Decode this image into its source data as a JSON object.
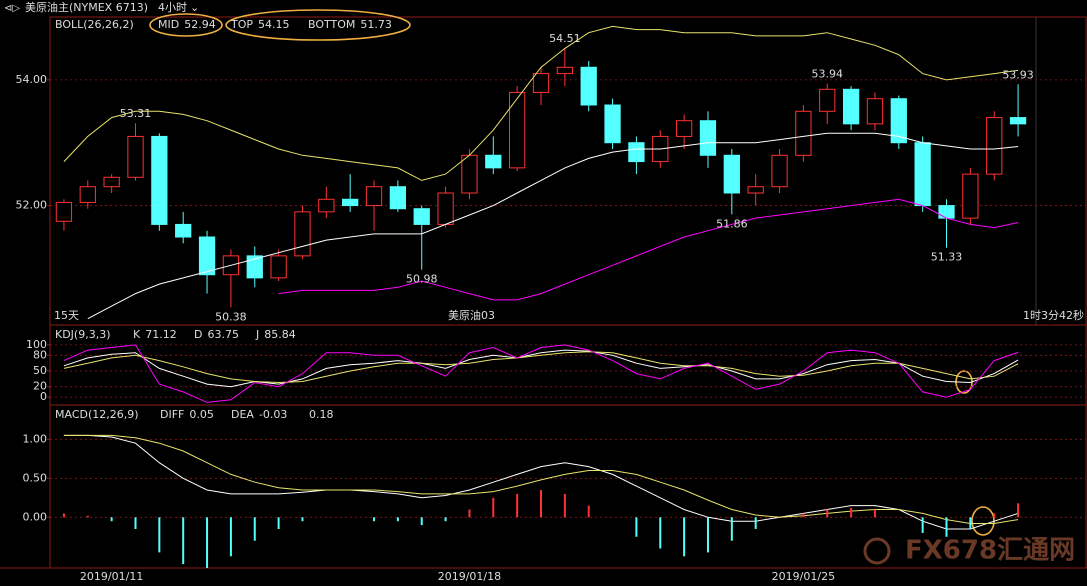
{
  "header": {
    "instrument": "美原油主(NYMEX 6713)",
    "period": "4小时"
  },
  "panel_notes": {
    "left": "15天",
    "center": "美原油03",
    "right": "1时3分42秒"
  },
  "watermark": "FX678汇通网",
  "chart_data": [
    {
      "type": "candlestick",
      "indicator": "BOLL(26,26,2)",
      "categories": [
        null,
        null,
        "2019/01/11",
        null,
        null,
        null,
        null,
        null,
        null,
        null,
        null,
        null,
        null,
        null,
        null,
        null,
        null,
        "2019/01/18",
        null,
        null,
        null,
        null,
        null,
        null,
        null,
        null,
        null,
        null,
        null,
        null,
        null,
        "2019/01/25",
        null,
        null,
        null,
        null,
        null,
        null,
        null,
        null,
        null
      ],
      "open": [
        51.75,
        52.05,
        52.3,
        52.45,
        53.1,
        51.7,
        51.5,
        50.9,
        51.2,
        50.85,
        51.2,
        51.9,
        52.1,
        52.0,
        52.3,
        51.95,
        51.7,
        52.2,
        52.8,
        52.6,
        53.8,
        54.1,
        54.2,
        53.6,
        53.0,
        52.7,
        53.1,
        53.35,
        52.8,
        52.2,
        52.3,
        52.8,
        53.5,
        53.85,
        53.3,
        53.7,
        53.0,
        52.0,
        51.8,
        52.5,
        53.4
      ],
      "high": [
        52.1,
        52.4,
        52.5,
        53.31,
        53.15,
        51.9,
        51.6,
        51.3,
        51.35,
        51.3,
        52.0,
        52.3,
        52.5,
        52.4,
        52.4,
        52.0,
        52.3,
        52.9,
        53.1,
        53.9,
        54.2,
        54.51,
        54.3,
        53.7,
        53.1,
        53.2,
        53.45,
        53.5,
        52.9,
        52.5,
        52.9,
        53.6,
        53.94,
        53.9,
        53.8,
        53.75,
        53.1,
        52.1,
        52.6,
        53.5,
        53.93
      ],
      "low": [
        51.6,
        51.95,
        52.2,
        52.4,
        51.6,
        51.4,
        50.6,
        50.38,
        50.7,
        50.8,
        51.15,
        51.8,
        51.9,
        51.6,
        51.9,
        50.98,
        51.65,
        52.1,
        52.5,
        52.55,
        53.6,
        53.9,
        53.5,
        52.9,
        52.5,
        52.6,
        52.9,
        52.6,
        51.86,
        52.0,
        52.2,
        52.7,
        53.3,
        53.2,
        53.2,
        52.9,
        51.9,
        51.33,
        51.7,
        52.4,
        53.1
      ],
      "close": [
        52.05,
        52.3,
        52.45,
        53.1,
        51.7,
        51.5,
        50.9,
        51.2,
        50.85,
        51.2,
        51.9,
        52.1,
        52.0,
        52.3,
        51.95,
        51.7,
        52.2,
        52.8,
        52.6,
        53.8,
        54.1,
        54.2,
        53.6,
        53.0,
        52.7,
        53.1,
        53.35,
        52.8,
        52.2,
        52.3,
        52.8,
        53.5,
        53.85,
        53.3,
        53.7,
        53.0,
        52.0,
        51.8,
        52.5,
        53.4,
        53.3
      ],
      "up_color": "#ff3232",
      "down_color": "#54ffff",
      "series": [
        {
          "name": "MID",
          "color": "#ffffff",
          "values": [
            null,
            50.2,
            50.4,
            50.6,
            50.75,
            50.85,
            50.95,
            51.05,
            51.15,
            51.25,
            51.35,
            51.45,
            51.5,
            51.55,
            51.55,
            51.55,
            51.7,
            51.85,
            52.0,
            52.2,
            52.4,
            52.6,
            52.75,
            52.85,
            52.9,
            52.9,
            52.95,
            53.0,
            53.0,
            53.0,
            53.05,
            53.1,
            53.15,
            53.15,
            53.15,
            53.1,
            53.0,
            52.95,
            52.9,
            52.9,
            52.94
          ]
        },
        {
          "name": "TOP",
          "color": "#e8e36a",
          "values": [
            52.7,
            53.1,
            53.4,
            53.5,
            53.5,
            53.45,
            53.35,
            53.2,
            53.05,
            52.9,
            52.8,
            52.75,
            52.7,
            52.65,
            52.6,
            52.4,
            52.5,
            52.8,
            53.2,
            53.7,
            54.2,
            54.5,
            54.75,
            54.85,
            54.8,
            54.8,
            54.75,
            54.75,
            54.75,
            54.7,
            54.7,
            54.7,
            54.75,
            54.65,
            54.55,
            54.4,
            54.1,
            54.0,
            54.05,
            54.1,
            54.15
          ]
        },
        {
          "name": "BOTTOM",
          "color": "#ff00ff",
          "values": [
            null,
            null,
            null,
            null,
            null,
            null,
            null,
            null,
            null,
            50.6,
            50.65,
            50.65,
            50.65,
            50.65,
            50.7,
            50.8,
            50.7,
            50.6,
            50.5,
            50.5,
            50.6,
            50.75,
            50.9,
            51.05,
            51.2,
            51.35,
            51.5,
            51.6,
            51.7,
            51.8,
            51.85,
            51.9,
            51.95,
            52.0,
            52.05,
            52.1,
            52.0,
            51.8,
            51.7,
            51.65,
            51.73
          ]
        }
      ],
      "ylim": [
        50.1,
        55.0
      ],
      "yticks": [
        {
          "value": 52,
          "label": "52.00"
        },
        {
          "value": 54,
          "label": "54.00"
        }
      ],
      "grid": true
    },
    {
      "type": "line",
      "indicator": "KDJ(9,3,3)",
      "series": [
        {
          "name": "K",
          "color": "#ffffff",
          "values": [
            60,
            75,
            82,
            85,
            55,
            40,
            25,
            20,
            30,
            25,
            35,
            55,
            62,
            65,
            70,
            65,
            55,
            72,
            80,
            75,
            85,
            90,
            88,
            80,
            65,
            55,
            58,
            62,
            50,
            35,
            35,
            45,
            62,
            70,
            72,
            65,
            40,
            30,
            28,
            45,
            71.12
          ]
        },
        {
          "name": "D",
          "color": "#e8e36a",
          "values": [
            55,
            65,
            75,
            80,
            70,
            58,
            45,
            35,
            30,
            28,
            30,
            40,
            50,
            58,
            65,
            65,
            62,
            65,
            72,
            75,
            80,
            85,
            87,
            85,
            75,
            65,
            60,
            60,
            55,
            45,
            40,
            42,
            50,
            60,
            65,
            65,
            55,
            45,
            35,
            40,
            63.75
          ]
        },
        {
          "name": "J",
          "color": "#ff00ff",
          "values": [
            70,
            90,
            95,
            100,
            25,
            10,
            -10,
            -5,
            28,
            20,
            45,
            85,
            85,
            80,
            80,
            60,
            40,
            85,
            95,
            75,
            95,
            100,
            90,
            70,
            45,
            35,
            55,
            65,
            40,
            15,
            25,
            50,
            85,
            90,
            85,
            65,
            10,
            0,
            15,
            70,
            85.84
          ]
        }
      ],
      "ylim": [
        -15,
        138
      ],
      "yticks": [
        0,
        20,
        50,
        80,
        100
      ],
      "grid": true
    },
    {
      "type": "macd",
      "indicator": "MACD(12,26,9)",
      "series": [
        {
          "name": "DIFF",
          "color": "#ffffff",
          "values": [
            1.05,
            1.05,
            1.03,
            0.95,
            0.7,
            0.5,
            0.35,
            0.3,
            0.3,
            0.3,
            0.32,
            0.35,
            0.35,
            0.33,
            0.3,
            0.25,
            0.28,
            0.35,
            0.45,
            0.55,
            0.65,
            0.7,
            0.65,
            0.55,
            0.4,
            0.25,
            0.1,
            0.0,
            -0.05,
            -0.05,
            0.0,
            0.05,
            0.1,
            0.15,
            0.15,
            0.1,
            -0.05,
            -0.15,
            -0.15,
            -0.05,
            0.05
          ]
        },
        {
          "name": "DEA",
          "color": "#e8e36a",
          "values": [
            1.05,
            1.05,
            1.05,
            1.02,
            0.95,
            0.85,
            0.7,
            0.55,
            0.45,
            0.38,
            0.35,
            0.35,
            0.35,
            0.35,
            0.33,
            0.3,
            0.3,
            0.3,
            0.33,
            0.4,
            0.48,
            0.55,
            0.6,
            0.6,
            0.55,
            0.45,
            0.35,
            0.22,
            0.1,
            0.03,
            0.0,
            0.02,
            0.05,
            0.08,
            0.1,
            0.1,
            0.05,
            -0.03,
            -0.08,
            -0.08,
            -0.03
          ]
        },
        {
          "color": "#ffffff",
          "values": [
            0.05,
            0.02,
            -0.05,
            -0.15,
            -0.45,
            -0.6,
            -0.65,
            -0.5,
            -0.3,
            -0.15,
            -0.05,
            0.0,
            0.0,
            -0.05,
            -0.05,
            -0.1,
            -0.05,
            0.1,
            0.25,
            0.3,
            0.35,
            0.3,
            0.15,
            0,
            -0.25,
            -0.4,
            -0.5,
            -0.45,
            -0.3,
            -0.15,
            0,
            0.05,
            0.1,
            0.12,
            0.1,
            0,
            -0.2,
            -0.25,
            -0.15,
            0.05,
            0.18
          ]
        }
      ],
      "up_color": "#ff3232",
      "down_color": "#54ffff",
      "ylim": [
        -0.65,
        1.44
      ],
      "yticks": [
        {
          "value": 0,
          "label": "0.00"
        },
        {
          "value": 0.5,
          "label": "0.50"
        },
        {
          "value": 1,
          "label": "1.00"
        }
      ],
      "grid": true
    }
  ]
}
